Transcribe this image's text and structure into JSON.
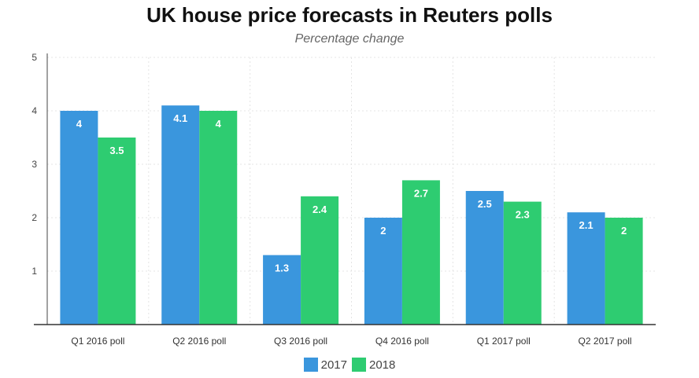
{
  "chart_data": {
    "type": "bar",
    "title": "UK house price forecasts in Reuters polls",
    "subtitle": "Percentage change",
    "xlabel": "",
    "ylabel": "",
    "ylim": [
      0,
      5
    ],
    "yticks": [
      "1",
      "2",
      "3",
      "4",
      "5"
    ],
    "grid": true,
    "legend_placement": "bottom",
    "categories": [
      "Q1 2016 poll",
      "Q2 2016 poll",
      "Q3 2016 poll",
      "Q4 2016 poll",
      "Q1 2017 poll",
      "Q2 2017 poll"
    ],
    "series": [
      {
        "name": "2017",
        "color": "#3a96dd",
        "values": [
          4,
          4.1,
          1.3,
          2,
          2.5,
          2.1
        ],
        "labels": [
          "4",
          "4.1",
          "1.3",
          "2",
          "2.5",
          "2.1"
        ]
      },
      {
        "name": "2018",
        "color": "#2ecc71",
        "values": [
          3.5,
          4,
          2.4,
          2.7,
          2.3,
          2
        ],
        "labels": [
          "3.5",
          "4",
          "2.4",
          "2.7",
          "2.3",
          "2"
        ]
      }
    ]
  }
}
